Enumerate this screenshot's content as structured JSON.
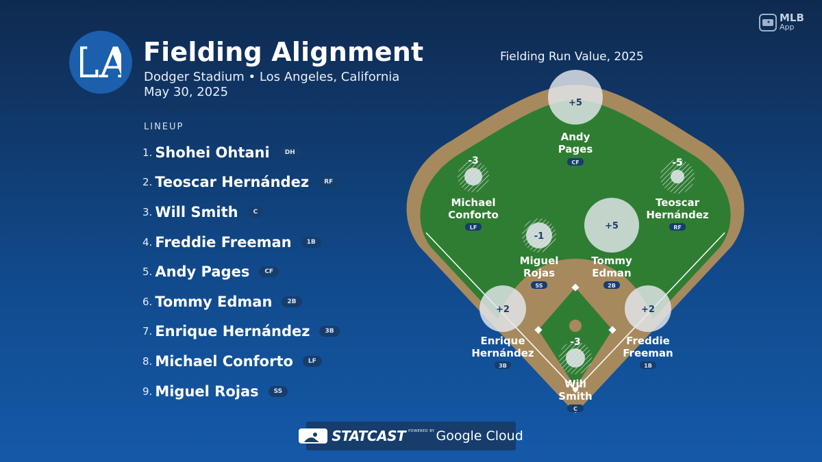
{
  "header": {
    "logo_text": "LA",
    "title": "Fielding Alignment",
    "subtitle": "Dodger Stadium • Los Angeles, California",
    "date": "May 30, 2025"
  },
  "app_badge": {
    "line1": "MLB",
    "line2": "App"
  },
  "lineup": {
    "header": "LINEUP",
    "players": [
      {
        "num": "1.",
        "name": "Shohei Ohtani",
        "pos": "DH"
      },
      {
        "num": "2.",
        "name": "Teoscar Hernández",
        "pos": "RF"
      },
      {
        "num": "3.",
        "name": "Will Smith",
        "pos": "C"
      },
      {
        "num": "4.",
        "name": "Freddie Freeman",
        "pos": "1B"
      },
      {
        "num": "5.",
        "name": "Andy Pages",
        "pos": "CF"
      },
      {
        "num": "6.",
        "name": "Tommy Edman",
        "pos": "2B"
      },
      {
        "num": "7.",
        "name": "Enrique Hernández",
        "pos": "3B"
      },
      {
        "num": "8.",
        "name": "Michael Conforto",
        "pos": "LF"
      },
      {
        "num": "9.",
        "name": "Miguel Rojas",
        "pos": "SS"
      }
    ]
  },
  "field": {
    "title": "Fielding Run Value, 2025",
    "fielders": [
      {
        "line1": "Andy",
        "line2": "Pages",
        "pos": "CF",
        "frv": "+5",
        "value": 5
      },
      {
        "line1": "Michael",
        "line2": "Conforto",
        "pos": "LF",
        "frv": "-3",
        "value": -3
      },
      {
        "line1": "Teoscar",
        "line2": "Hernández",
        "pos": "RF",
        "frv": "-5",
        "value": -5
      },
      {
        "line1": "Miguel",
        "line2": "Rojas",
        "pos": "SS",
        "frv": "-1",
        "value": -1
      },
      {
        "line1": "Tommy",
        "line2": "Edman",
        "pos": "2B",
        "frv": "+5",
        "value": 5
      },
      {
        "line1": "Enrique",
        "line2": "Hernández",
        "pos": "3B",
        "frv": "+2",
        "value": 2
      },
      {
        "line1": "Freddie",
        "line2": "Freeman",
        "pos": "1B",
        "frv": "+2",
        "value": 2
      },
      {
        "line1": "Will",
        "line2": "Smith",
        "pos": "C",
        "frv": "-3",
        "value": -3
      }
    ]
  },
  "footer": {
    "statcast": "STATCAST",
    "powered_by": "POWERED BY",
    "google_cloud": "Google Cloud"
  }
}
